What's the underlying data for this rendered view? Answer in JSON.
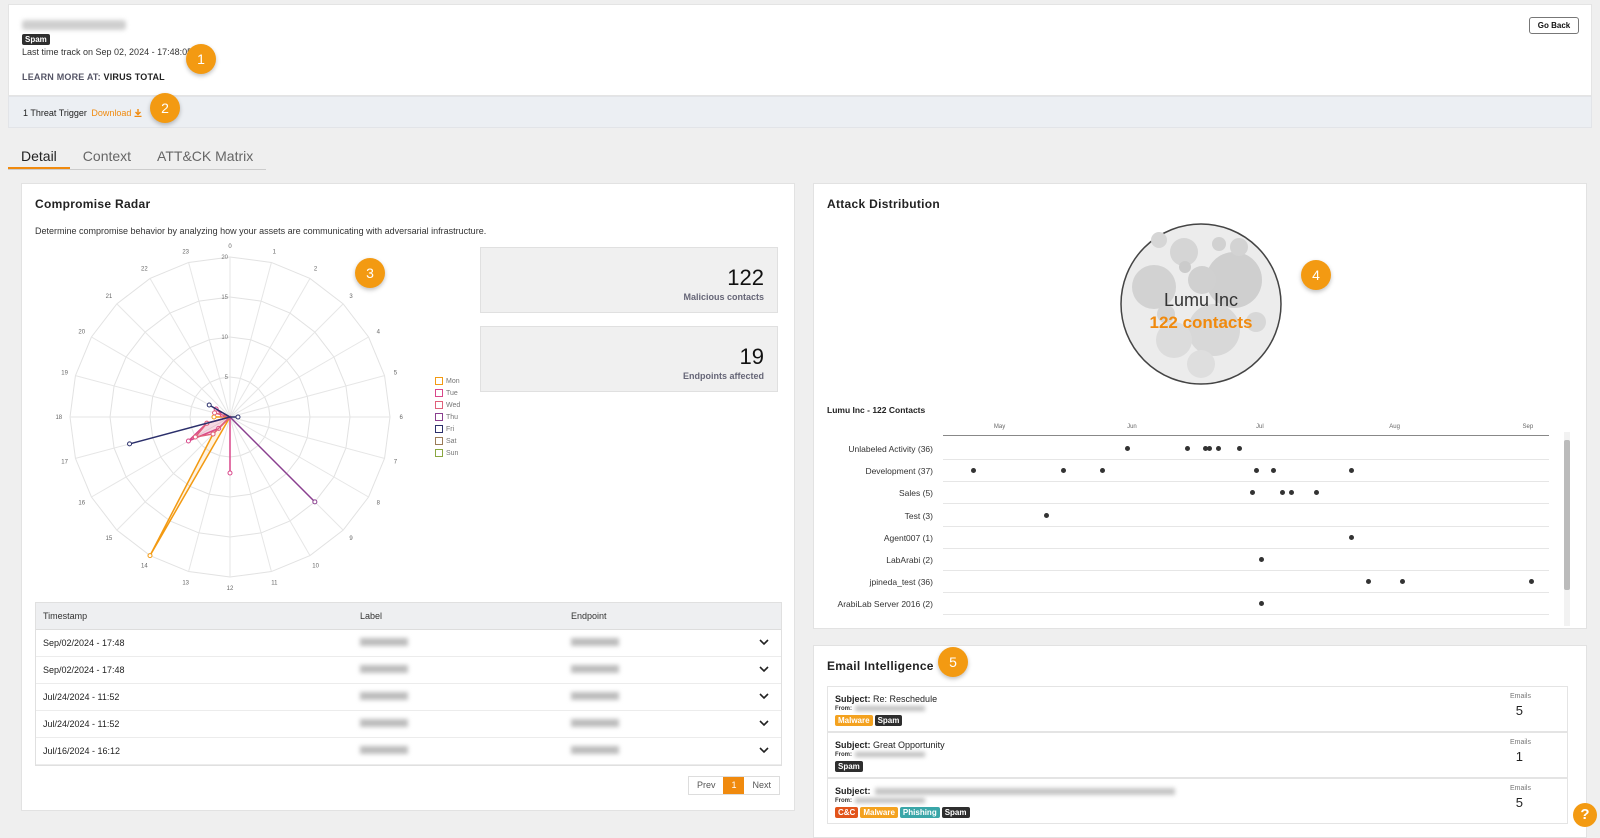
{
  "header": {
    "tag": "Spam",
    "last_track": "Last time track on Sep 02, 2024 - 17:48:05",
    "learn_prefix": "LEARN MORE AT:",
    "learn_link": "VIRUS TOTAL",
    "go_back": "Go Back"
  },
  "threat": {
    "text": "1 Threat Trigger",
    "download": "Download"
  },
  "badges": [
    "1",
    "2",
    "3",
    "4",
    "5"
  ],
  "tabs": [
    {
      "label": "Detail",
      "active": true
    },
    {
      "label": "Context",
      "active": false
    },
    {
      "label": "ATT&CK Matrix",
      "active": false
    }
  ],
  "radar": {
    "title": "Compromise Radar",
    "subtitle": "Determine compromise behavior by analyzing how your assets are communicating with adversarial infrastructure.",
    "hours": [
      "0",
      "1",
      "2",
      "3",
      "4",
      "5",
      "6",
      "7",
      "8",
      "9",
      "10",
      "11",
      "12",
      "13",
      "14",
      "15",
      "16",
      "17",
      "18",
      "19",
      "20",
      "21",
      "22",
      "23"
    ],
    "scale_labels": [
      "5",
      "10",
      "15",
      "20"
    ],
    "legend": [
      {
        "day": "Mon",
        "color": "#f39a12"
      },
      {
        "day": "Tue",
        "color": "#d9478a"
      },
      {
        "day": "Wed",
        "color": "#e0607a"
      },
      {
        "day": "Thu",
        "color": "#8a3f8f"
      },
      {
        "day": "Fri",
        "color": "#2b2f6b"
      },
      {
        "day": "Sat",
        "color": "#9a7a56"
      },
      {
        "day": "Sun",
        "color": "#8aa640"
      }
    ],
    "series": {
      "Mon": [
        0,
        0,
        0,
        0,
        0,
        0,
        0,
        0,
        0,
        0,
        0,
        0,
        0,
        0,
        20,
        3,
        0,
        0,
        2,
        0,
        0,
        0,
        0,
        0
      ],
      "Tue": [
        0,
        0,
        0,
        0,
        0,
        0,
        0,
        0,
        0,
        0,
        0,
        0,
        7,
        0,
        0,
        2,
        6,
        3,
        0,
        1,
        2,
        0,
        0,
        0
      ],
      "Wed": [
        0,
        0,
        0,
        0,
        0,
        0,
        0,
        0,
        0,
        0,
        0,
        0,
        0,
        0,
        0,
        3,
        5,
        3,
        0,
        2,
        0,
        0,
        0,
        0
      ],
      "Thu": [
        0,
        0,
        0,
        0,
        0,
        0,
        0,
        0,
        0,
        15,
        0,
        0,
        0,
        0,
        0,
        0,
        0,
        0,
        0,
        0,
        0,
        0,
        0,
        0
      ],
      "Fri": [
        0,
        0,
        0,
        0,
        0,
        0,
        1,
        0,
        0,
        0,
        0,
        0,
        0,
        0,
        0,
        0,
        0,
        13,
        0,
        0,
        3,
        0,
        0,
        0
      ]
    }
  },
  "stats": [
    {
      "value": "122",
      "label": "Malicious contacts"
    },
    {
      "value": "19",
      "label": "Endpoints affected"
    }
  ],
  "table": {
    "headers": [
      "Timestamp",
      "Label",
      "Endpoint"
    ],
    "rows": [
      {
        "timestamp": "Sep/02/2024 - 17:48"
      },
      {
        "timestamp": "Sep/02/2024 - 17:48"
      },
      {
        "timestamp": "Jul/24/2024 - 11:52"
      },
      {
        "timestamp": "Jul/24/2024 - 11:52"
      },
      {
        "timestamp": "Jul/16/2024 - 16:12"
      }
    ]
  },
  "pager": {
    "prev": "Prev",
    "current": "1",
    "next": "Next"
  },
  "distribution": {
    "title": "Attack Distribution",
    "org_name": "Lumu Inc",
    "org_contacts": "122 contacts",
    "subtitle": "Lumu Inc - 122 Contacts",
    "months": [
      "May",
      "Jun",
      "Jul",
      "Aug",
      "Sep"
    ],
    "rows": [
      {
        "label": "Unlabeled Activity (36)",
        "dates": [
          "2024-05-31",
          "2024-06-14",
          "2024-06-18",
          "2024-06-19",
          "2024-06-21",
          "2024-06-26"
        ]
      },
      {
        "label": "Development (37)",
        "dates": [
          "2024-04-25",
          "2024-05-16",
          "2024-05-25",
          "2024-06-30",
          "2024-07-04",
          "2024-07-22"
        ]
      },
      {
        "label": "Sales (5)",
        "dates": [
          "2024-06-29",
          "2024-07-06",
          "2024-07-08",
          "2024-07-14"
        ]
      },
      {
        "label": "Test (3)",
        "dates": [
          "2024-05-12"
        ]
      },
      {
        "label": "Agent007 (1)",
        "dates": [
          "2024-07-22"
        ]
      },
      {
        "label": "LabArabi (2)",
        "dates": [
          "2024-07-01"
        ]
      },
      {
        "label": "jpineda_test (36)",
        "dates": [
          "2024-07-26",
          "2024-08-03",
          "2024-09-02"
        ]
      },
      {
        "label": "ArabiLab Server 2016 (2)",
        "dates": [
          "2024-07-01"
        ]
      }
    ]
  },
  "email": {
    "title": "Email Intelligence",
    "from_label": "From:",
    "count_label": "Emails",
    "items": [
      {
        "subject_label": "Subject:",
        "subject": "Re: Reschedule",
        "tags": [
          "Malware",
          "Spam"
        ],
        "count": "5"
      },
      {
        "subject_label": "Subject:",
        "subject": "Great Opportunity",
        "tags": [
          "Spam"
        ],
        "count": "1"
      },
      {
        "subject_label": "Subject:",
        "subject": "",
        "tags": [
          "C&C",
          "Malware",
          "Phishing",
          "Spam"
        ],
        "count": "5"
      }
    ]
  },
  "help": "?"
}
